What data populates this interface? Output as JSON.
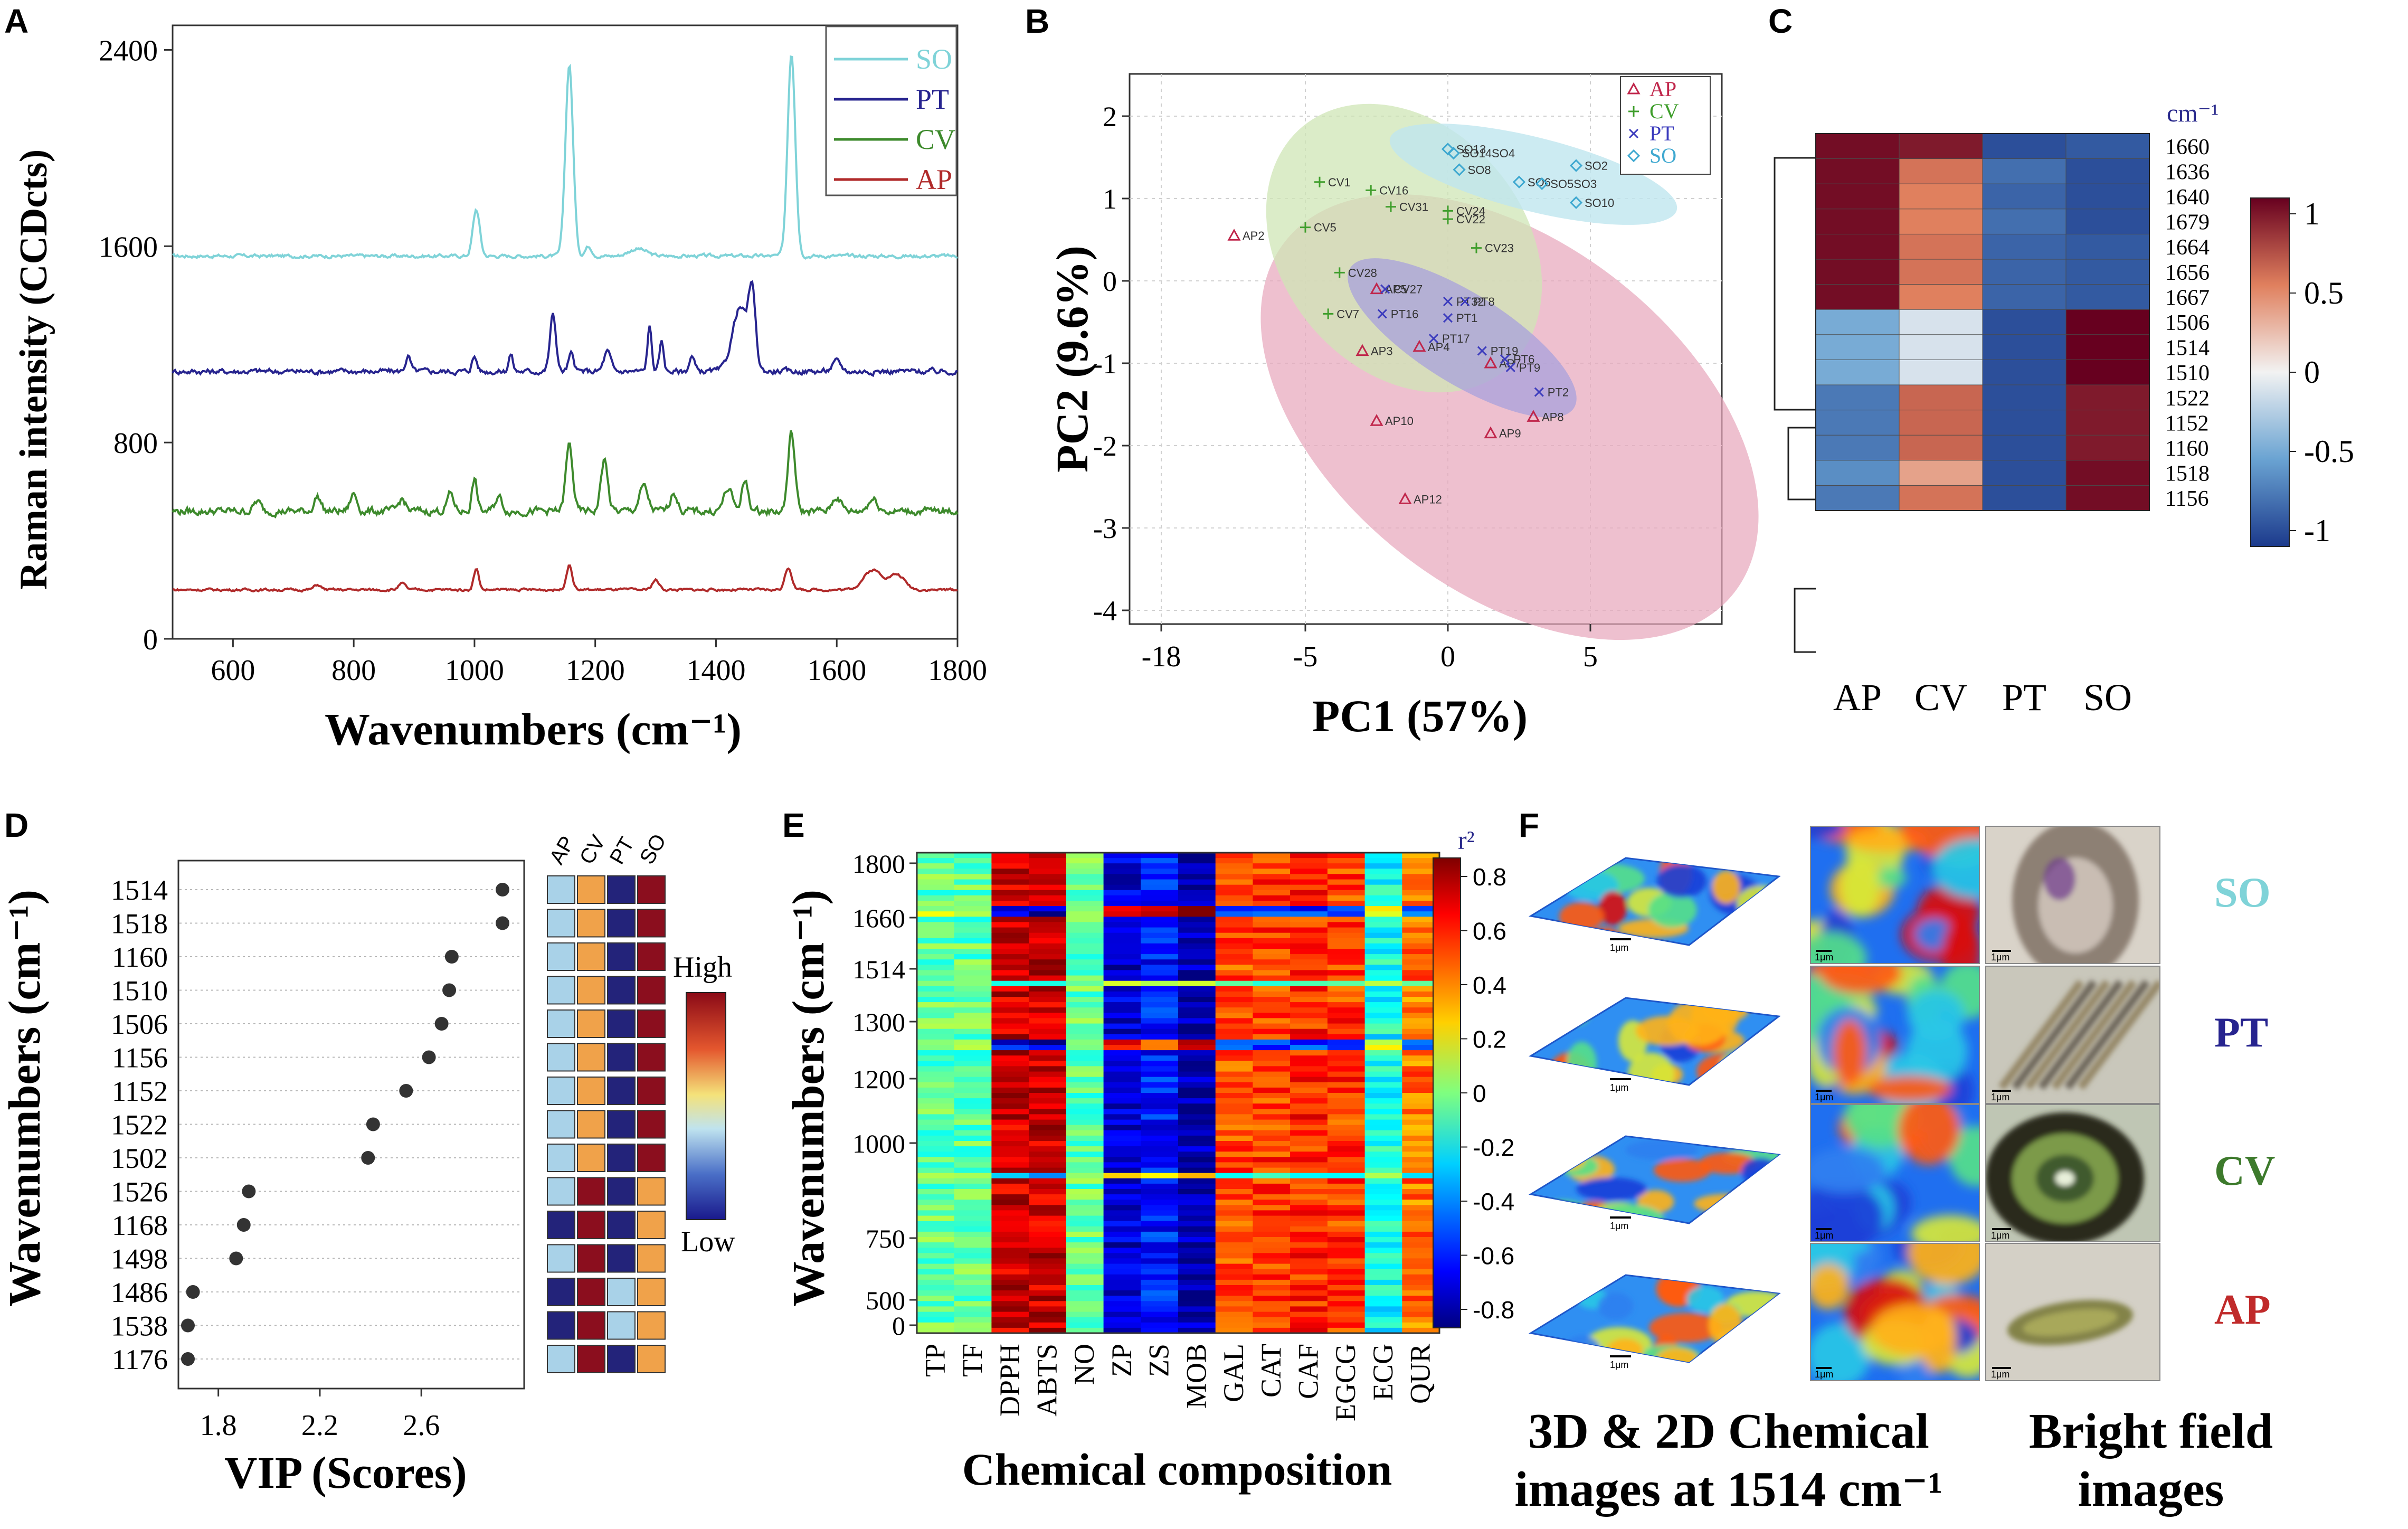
{
  "panels": {
    "A": "A",
    "B": "B",
    "C": "C",
    "D": "D",
    "E": "E",
    "F": "F"
  },
  "chart_data": [
    {
      "id": "A",
      "type": "line",
      "title": "",
      "xlabel": "Wavenumbers (cm⁻¹)",
      "ylabel": "Raman intensity (CCDcts)",
      "xlim": [
        500,
        1800
      ],
      "ylim": [
        0,
        2500
      ],
      "xticks": [
        "600",
        "800",
        "1000",
        "1200",
        "1400",
        "1600",
        "1800"
      ],
      "xtick_values": [
        600,
        800,
        1000,
        1200,
        1400,
        1600,
        1800
      ],
      "yticks": [
        "0",
        "800",
        "1600",
        "2400"
      ],
      "ytick_values": [
        0,
        800,
        1600,
        2400
      ],
      "legend": [
        "SO",
        "PT",
        "CV",
        "AP"
      ],
      "series": [
        {
          "name": "SO",
          "color": "#7fd3d8",
          "baseline": 1560,
          "noise": 14,
          "peaks": [
            [
              1003,
              190,
              8
            ],
            [
              1157,
              780,
              9
            ],
            [
              1189,
              40,
              8
            ],
            [
              1525,
              830,
              9
            ],
            [
              1270,
              30,
              20
            ]
          ]
        },
        {
          "name": "PT",
          "color": "#27248f",
          "baseline": 1090,
          "noise": 22,
          "peaks": [
            [
              890,
              60,
              6
            ],
            [
              1000,
              60,
              6
            ],
            [
              1060,
              70,
              5
            ],
            [
              1130,
              230,
              7
            ],
            [
              1160,
              70,
              6
            ],
            [
              1220,
              80,
              8
            ],
            [
              1290,
              180,
              5
            ],
            [
              1310,
              120,
              5
            ],
            [
              1360,
              60,
              6
            ],
            [
              1440,
              260,
              18
            ],
            [
              1460,
              280,
              8
            ],
            [
              1600,
              40,
              10
            ]
          ]
        },
        {
          "name": "CV",
          "color": "#3d8a2c",
          "baseline": 520,
          "noise": 30,
          "peaks": [
            [
              640,
              40,
              8
            ],
            [
              740,
              60,
              8
            ],
            [
              800,
              70,
              8
            ],
            [
              880,
              50,
              8
            ],
            [
              960,
              70,
              8
            ],
            [
              1000,
              130,
              6
            ],
            [
              1040,
              60,
              8
            ],
            [
              1157,
              270,
              8
            ],
            [
              1215,
              210,
              8
            ],
            [
              1280,
              100,
              10
            ],
            [
              1330,
              80,
              8
            ],
            [
              1420,
              90,
              10
            ],
            [
              1448,
              120,
              8
            ],
            [
              1525,
              320,
              8
            ],
            [
              1600,
              60,
              10
            ],
            [
              1660,
              50,
              12
            ]
          ]
        },
        {
          "name": "AP",
          "color": "#b02a2a",
          "baseline": 200,
          "noise": 10,
          "peaks": [
            [
              740,
              20,
              8
            ],
            [
              880,
              25,
              8
            ],
            [
              1003,
              85,
              6
            ],
            [
              1157,
              100,
              7
            ],
            [
              1300,
              40,
              8
            ],
            [
              1520,
              90,
              8
            ],
            [
              1660,
              80,
              22
            ],
            [
              1700,
              60,
              18
            ]
          ]
        }
      ]
    },
    {
      "id": "B",
      "type": "scatter",
      "xlabel": "PC1 (57%)",
      "ylabel": "PC2 (9.6%)",
      "xticks": [
        "-18",
        "-5",
        "0",
        "5"
      ],
      "yticks": [
        "2",
        "1",
        "0",
        "-1",
        "-2",
        "-3",
        "-4"
      ],
      "ytick_values": [
        2,
        1,
        0,
        -1,
        -2,
        -3,
        -4
      ],
      "legend": [
        "AP",
        "CV",
        "PT",
        "SO"
      ],
      "colors": {
        "AP": "#c0264b",
        "CV": "#3f9e2c",
        "PT": "#3b3bbd",
        "SO": "#3ea8d0"
      },
      "ellipse_colors": {
        "AP": "#e8a8bd",
        "CV": "#cfe6b5",
        "PT": "#a8a2dc",
        "SO": "#bfe6ef"
      },
      "points": [
        {
          "g": "AP",
          "x": -7.5,
          "y": 0.55,
          "label": "AP2"
        },
        {
          "g": "AP",
          "x": -2.5,
          "y": -0.1,
          "label": "AP5"
        },
        {
          "g": "AP",
          "x": -3,
          "y": -0.85,
          "label": "AP3"
        },
        {
          "g": "AP",
          "x": -1,
          "y": -0.8,
          "label": "AP4"
        },
        {
          "g": "AP",
          "x": 1.5,
          "y": -1,
          "label": "AP7"
        },
        {
          "g": "AP",
          "x": 3,
          "y": -1.65,
          "label": "AP8"
        },
        {
          "g": "AP",
          "x": 1.5,
          "y": -1.85,
          "label": "AP9"
        },
        {
          "g": "AP",
          "x": -2.5,
          "y": -1.7,
          "label": "AP10"
        },
        {
          "g": "AP",
          "x": -1.5,
          "y": -2.65,
          "label": "AP12"
        },
        {
          "g": "CV",
          "x": -4.5,
          "y": 1.2,
          "label": "CV1"
        },
        {
          "g": "CV",
          "x": -2.7,
          "y": 1.1,
          "label": "CV16"
        },
        {
          "g": "CV",
          "x": -2,
          "y": 0.9,
          "label": "CV31"
        },
        {
          "g": "CV",
          "x": -5,
          "y": 0.65,
          "label": "CV5"
        },
        {
          "g": "CV",
          "x": 0,
          "y": 0.85,
          "label": "CV24"
        },
        {
          "g": "CV",
          "x": 0,
          "y": 0.75,
          "label": "CV22"
        },
        {
          "g": "CV",
          "x": 1,
          "y": 0.4,
          "label": "CV23"
        },
        {
          "g": "CV",
          "x": -3.8,
          "y": 0.1,
          "label": "CV28"
        },
        {
          "g": "CV",
          "x": -4.2,
          "y": -0.4,
          "label": "CV7"
        },
        {
          "g": "PT",
          "x": -2.2,
          "y": -0.1,
          "label": "CV27"
        },
        {
          "g": "PT",
          "x": -2.3,
          "y": -0.4,
          "label": "PT16"
        },
        {
          "g": "PT",
          "x": 0,
          "y": -0.25,
          "label": "PT32"
        },
        {
          "g": "PT",
          "x": 0.6,
          "y": -0.25,
          "label": "PT8"
        },
        {
          "g": "PT",
          "x": 0,
          "y": -0.45,
          "label": "PT1"
        },
        {
          "g": "PT",
          "x": -0.5,
          "y": -0.7,
          "label": "PT17"
        },
        {
          "g": "PT",
          "x": 1.2,
          "y": -0.85,
          "label": "PT19"
        },
        {
          "g": "PT",
          "x": 2,
          "y": -0.95,
          "label": "PT6"
        },
        {
          "g": "PT",
          "x": 2.2,
          "y": -1.05,
          "label": "PT9"
        },
        {
          "g": "PT",
          "x": 3.2,
          "y": -1.35,
          "label": "PT2"
        },
        {
          "g": "SO",
          "x": 0,
          "y": 1.6,
          "label": "SO13"
        },
        {
          "g": "SO",
          "x": 0.2,
          "y": 1.55,
          "label": "SO14SO4"
        },
        {
          "g": "SO",
          "x": 0.4,
          "y": 1.35,
          "label": "SO8"
        },
        {
          "g": "SO",
          "x": 4.5,
          "y": 1.4,
          "label": "SO2"
        },
        {
          "g": "SO",
          "x": 2.5,
          "y": 1.2,
          "label": "SO6"
        },
        {
          "g": "SO",
          "x": 3.3,
          "y": 1.18,
          "label": "SO5SO3"
        },
        {
          "g": "SO",
          "x": 4.5,
          "y": 0.95,
          "label": "SO10"
        }
      ]
    },
    {
      "id": "C",
      "type": "heatmap",
      "unit_label": "cm⁻¹",
      "columns": [
        "AP",
        "CV",
        "PT",
        "SO"
      ],
      "rows": [
        "1660",
        "1636",
        "1640",
        "1679",
        "1664",
        "1656",
        "1667",
        "1506",
        "1514",
        "1510",
        "1522",
        "1152",
        "1160",
        "1518",
        "1156"
      ],
      "values": [
        [
          0.95,
          0.9,
          -0.9,
          -0.85
        ],
        [
          0.95,
          0.55,
          -0.75,
          -0.9
        ],
        [
          0.95,
          0.5,
          -0.8,
          -0.9
        ],
        [
          0.95,
          0.5,
          -0.75,
          -0.9
        ],
        [
          0.95,
          0.55,
          -0.8,
          -0.85
        ],
        [
          0.95,
          0.55,
          -0.8,
          -0.85
        ],
        [
          0.95,
          0.5,
          -0.8,
          -0.85
        ],
        [
          -0.45,
          -0.1,
          -0.9,
          1.0
        ],
        [
          -0.45,
          -0.1,
          -0.9,
          1.0
        ],
        [
          -0.45,
          -0.1,
          -0.9,
          1.0
        ],
        [
          -0.7,
          0.6,
          -0.9,
          0.9
        ],
        [
          -0.7,
          0.6,
          -0.9,
          0.9
        ],
        [
          -0.7,
          0.6,
          -0.9,
          0.9
        ],
        [
          -0.6,
          0.35,
          -0.9,
          0.95
        ],
        [
          -0.7,
          0.55,
          -0.9,
          0.95
        ]
      ],
      "colorbar_ticks": [
        "1",
        "0.5",
        "0",
        "-0.5",
        "-1"
      ],
      "colorbar_values": [
        1,
        0.5,
        0,
        -0.5,
        -1
      ]
    },
    {
      "id": "D",
      "type": "scatter",
      "xlabel": "VIP (Scores)",
      "ylabel": "Wavenumbers (cm⁻¹)",
      "xticks": [
        "1.8",
        "2.2",
        "2.6"
      ],
      "xtick_values": [
        1.8,
        2.2,
        2.6
      ],
      "xlim": [
        1.6,
        3.0
      ],
      "rows": [
        "1514",
        "1518",
        "1160",
        "1510",
        "1506",
        "1156",
        "1152",
        "1522",
        "1502",
        "1526",
        "1168",
        "1498",
        "1486",
        "1538",
        "1176"
      ],
      "vip": [
        2.92,
        2.92,
        2.72,
        2.71,
        2.68,
        2.63,
        2.54,
        2.41,
        2.39,
        1.92,
        1.9,
        1.87,
        1.7,
        1.68,
        1.68
      ],
      "box_columns": [
        "AP",
        "CV",
        "PT",
        "SO"
      ],
      "boxes": [
        [
          "L",
          "M",
          "D",
          "H"
        ],
        [
          "L",
          "M",
          "D",
          "H"
        ],
        [
          "L",
          "M",
          "D",
          "H"
        ],
        [
          "L",
          "M",
          "D",
          "H"
        ],
        [
          "L",
          "M",
          "D",
          "H"
        ],
        [
          "L",
          "M",
          "D",
          "H"
        ],
        [
          "L",
          "M",
          "D",
          "H"
        ],
        [
          "L",
          "M",
          "D",
          "H"
        ],
        [
          "L",
          "M",
          "D",
          "H"
        ],
        [
          "L",
          "H",
          "D",
          "M"
        ],
        [
          "D",
          "H",
          "D",
          "M"
        ],
        [
          "L",
          "H",
          "D",
          "M"
        ],
        [
          "D",
          "H",
          "L",
          "M"
        ],
        [
          "D",
          "H",
          "L",
          "M"
        ],
        [
          "L",
          "H",
          "D",
          "M"
        ]
      ],
      "legend_high": "High",
      "legend_low": "Low"
    },
    {
      "id": "E",
      "type": "heatmap",
      "xlabel": "Chemical composition",
      "ylabel": "Wavenumbers (cm⁻¹)",
      "columns": [
        "TP",
        "TF",
        "DPPH",
        "ABTS",
        "NO",
        "ZP",
        "ZS",
        "MOB",
        "GAL",
        "CAT",
        "CAF",
        "EGCG",
        "ECG",
        "QUR"
      ],
      "yticks": [
        "1800",
        "1660",
        "1514",
        "1300",
        "1200",
        "1000",
        "750",
        "500",
        "0"
      ],
      "column_base_r": [
        -0.05,
        -0.05,
        0.72,
        0.72,
        -0.05,
        -0.72,
        -0.6,
        -0.78,
        0.52,
        0.55,
        0.58,
        0.55,
        -0.2,
        0.45
      ],
      "colorbar_title": "r²",
      "colorbar_ticks": [
        "0.8",
        "0.6",
        "0.4",
        "0.2",
        "0",
        "-0.2",
        "-0.4",
        "-0.6",
        "-0.8"
      ],
      "colorbar_values": [
        0.8,
        0.6,
        0.4,
        0.2,
        0,
        -0.2,
        -0.4,
        -0.6,
        -0.8
      ]
    }
  ],
  "panelF": {
    "row_labels": [
      {
        "text": "SO",
        "color": "#7fd3d8"
      },
      {
        "text": "PT",
        "color": "#27248f"
      },
      {
        "text": "CV",
        "color": "#3d7a2c"
      },
      {
        "text": "AP",
        "color": "#c02a2a"
      }
    ],
    "scale_label": "1μm",
    "caption_chem_1": "3D & 2D Chemical",
    "caption_chem_2": "images at 1514 cm⁻¹",
    "caption_bf_1": "Bright field",
    "caption_bf_2": "images"
  }
}
